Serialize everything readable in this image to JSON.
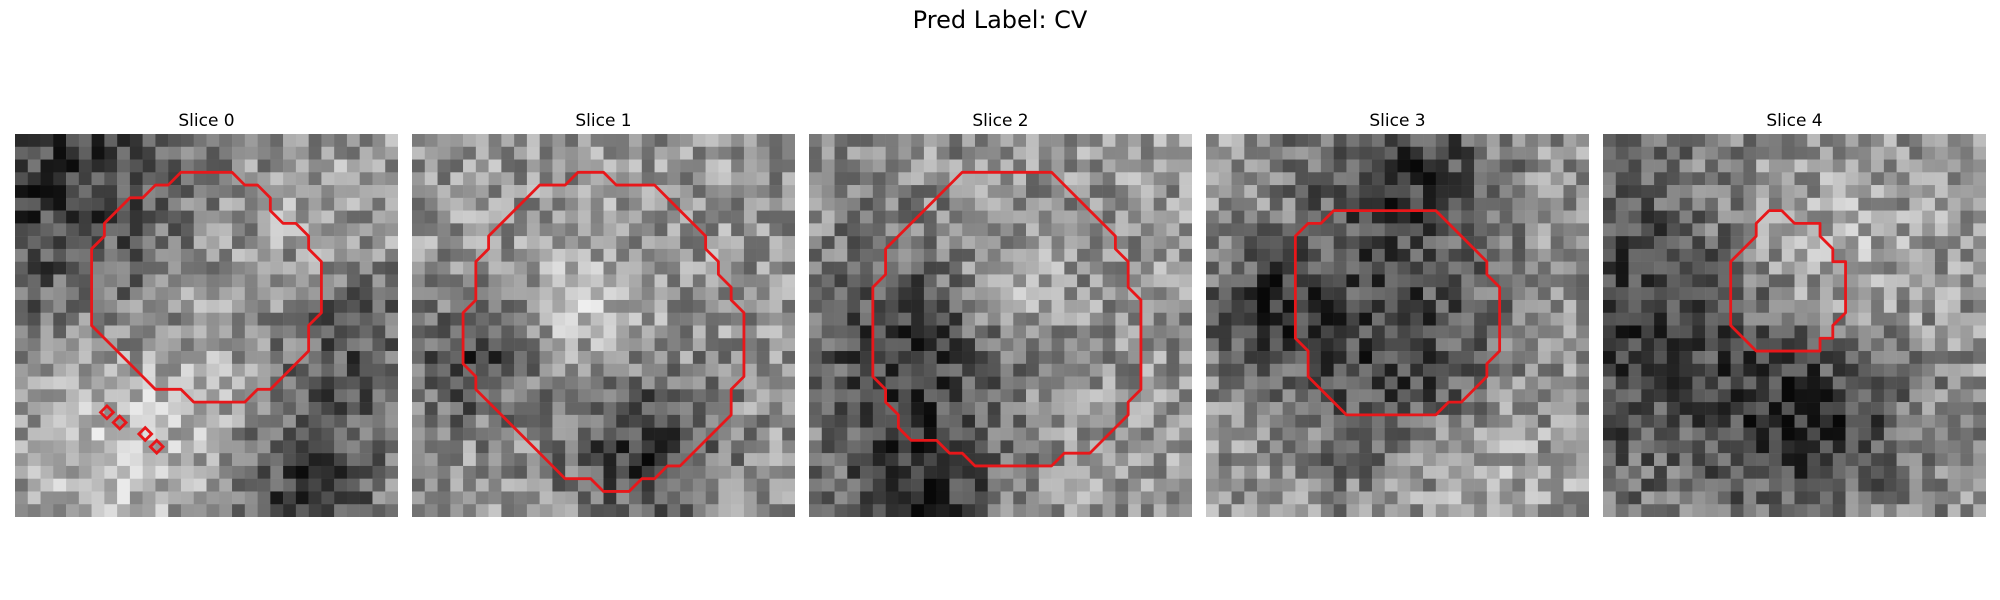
{
  "figure": {
    "title": "Pred Label: CV"
  },
  "contour_color": "#e8171a",
  "panels": [
    {
      "label": "Slice 0",
      "seed": 11,
      "dark": [
        [
          0.12,
          0.12,
          0.9
        ],
        [
          0.85,
          0.55,
          0.5
        ],
        [
          0.75,
          0.95,
          0.4
        ]
      ],
      "light": [
        [
          0.7,
          0.4,
          0.7
        ],
        [
          0.3,
          0.8,
          0.6
        ]
      ]
    },
    {
      "label": "Slice 1",
      "seed": 23,
      "dark": [
        [
          0.6,
          0.82,
          0.4
        ],
        [
          0.15,
          0.6,
          0.3
        ]
      ],
      "light": [
        [
          0.45,
          0.45,
          0.3
        ]
      ]
    },
    {
      "label": "Slice 2",
      "seed": 37,
      "dark": [
        [
          0.25,
          0.55,
          0.6
        ],
        [
          0.3,
          0.95,
          0.4
        ]
      ],
      "light": [
        [
          0.5,
          0.4,
          0.3
        ]
      ]
    },
    {
      "label": "Slice 3",
      "seed": 41,
      "dark": [
        [
          0.5,
          0.1,
          0.5
        ],
        [
          0.5,
          0.6,
          0.6
        ],
        [
          0.15,
          0.45,
          0.3
        ]
      ],
      "light": [
        [
          0.7,
          0.85,
          0.4
        ]
      ]
    },
    {
      "label": "Slice 4",
      "seed": 53,
      "dark": [
        [
          0.05,
          0.5,
          0.9
        ],
        [
          0.55,
          0.75,
          0.5
        ]
      ],
      "light": [
        [
          0.55,
          0.35,
          0.5
        ]
      ]
    }
  ]
}
